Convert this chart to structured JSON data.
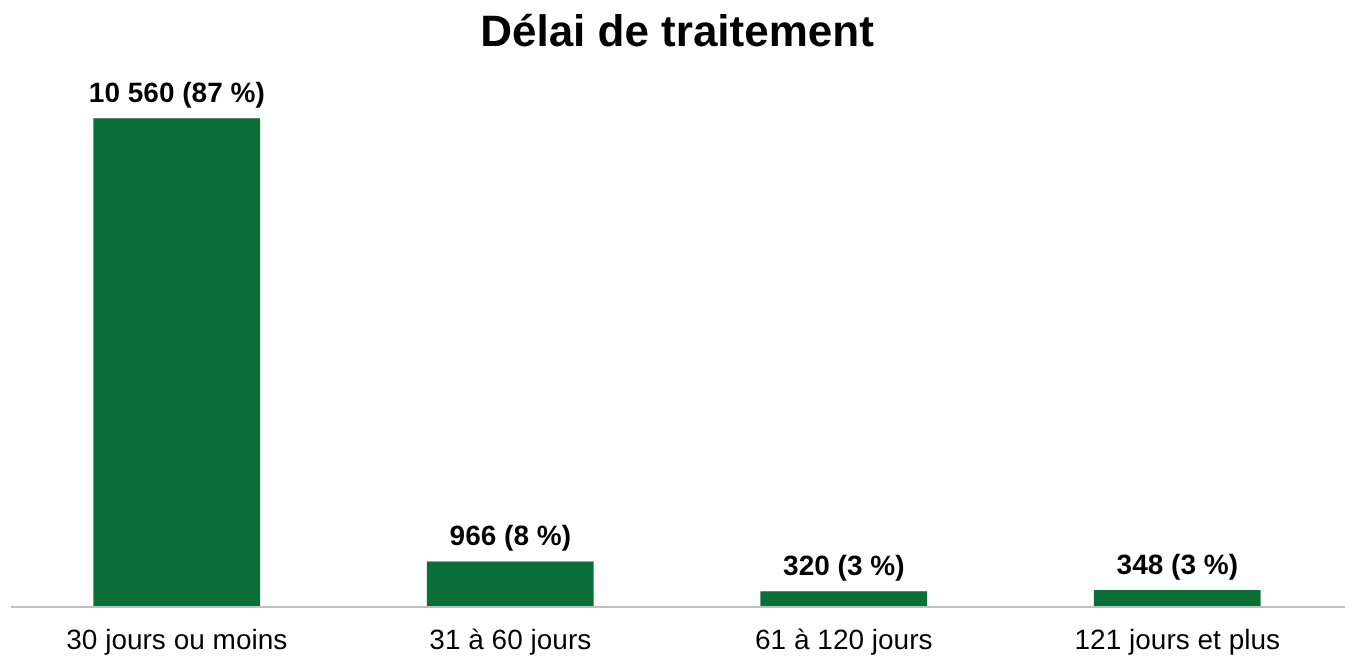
{
  "chart_data": {
    "type": "bar",
    "title": "Délai de traitement",
    "categories": [
      "30 jours ou moins",
      "31 à 60 jours",
      "61 à 120 jours",
      "121 jours et plus"
    ],
    "values": [
      10560,
      966,
      320,
      348
    ],
    "value_labels": [
      "10 560  (87 %)",
      "966  (8 %)",
      "320 (3 %)",
      "348 (3 %)"
    ],
    "color": "#0a6e37"
  }
}
